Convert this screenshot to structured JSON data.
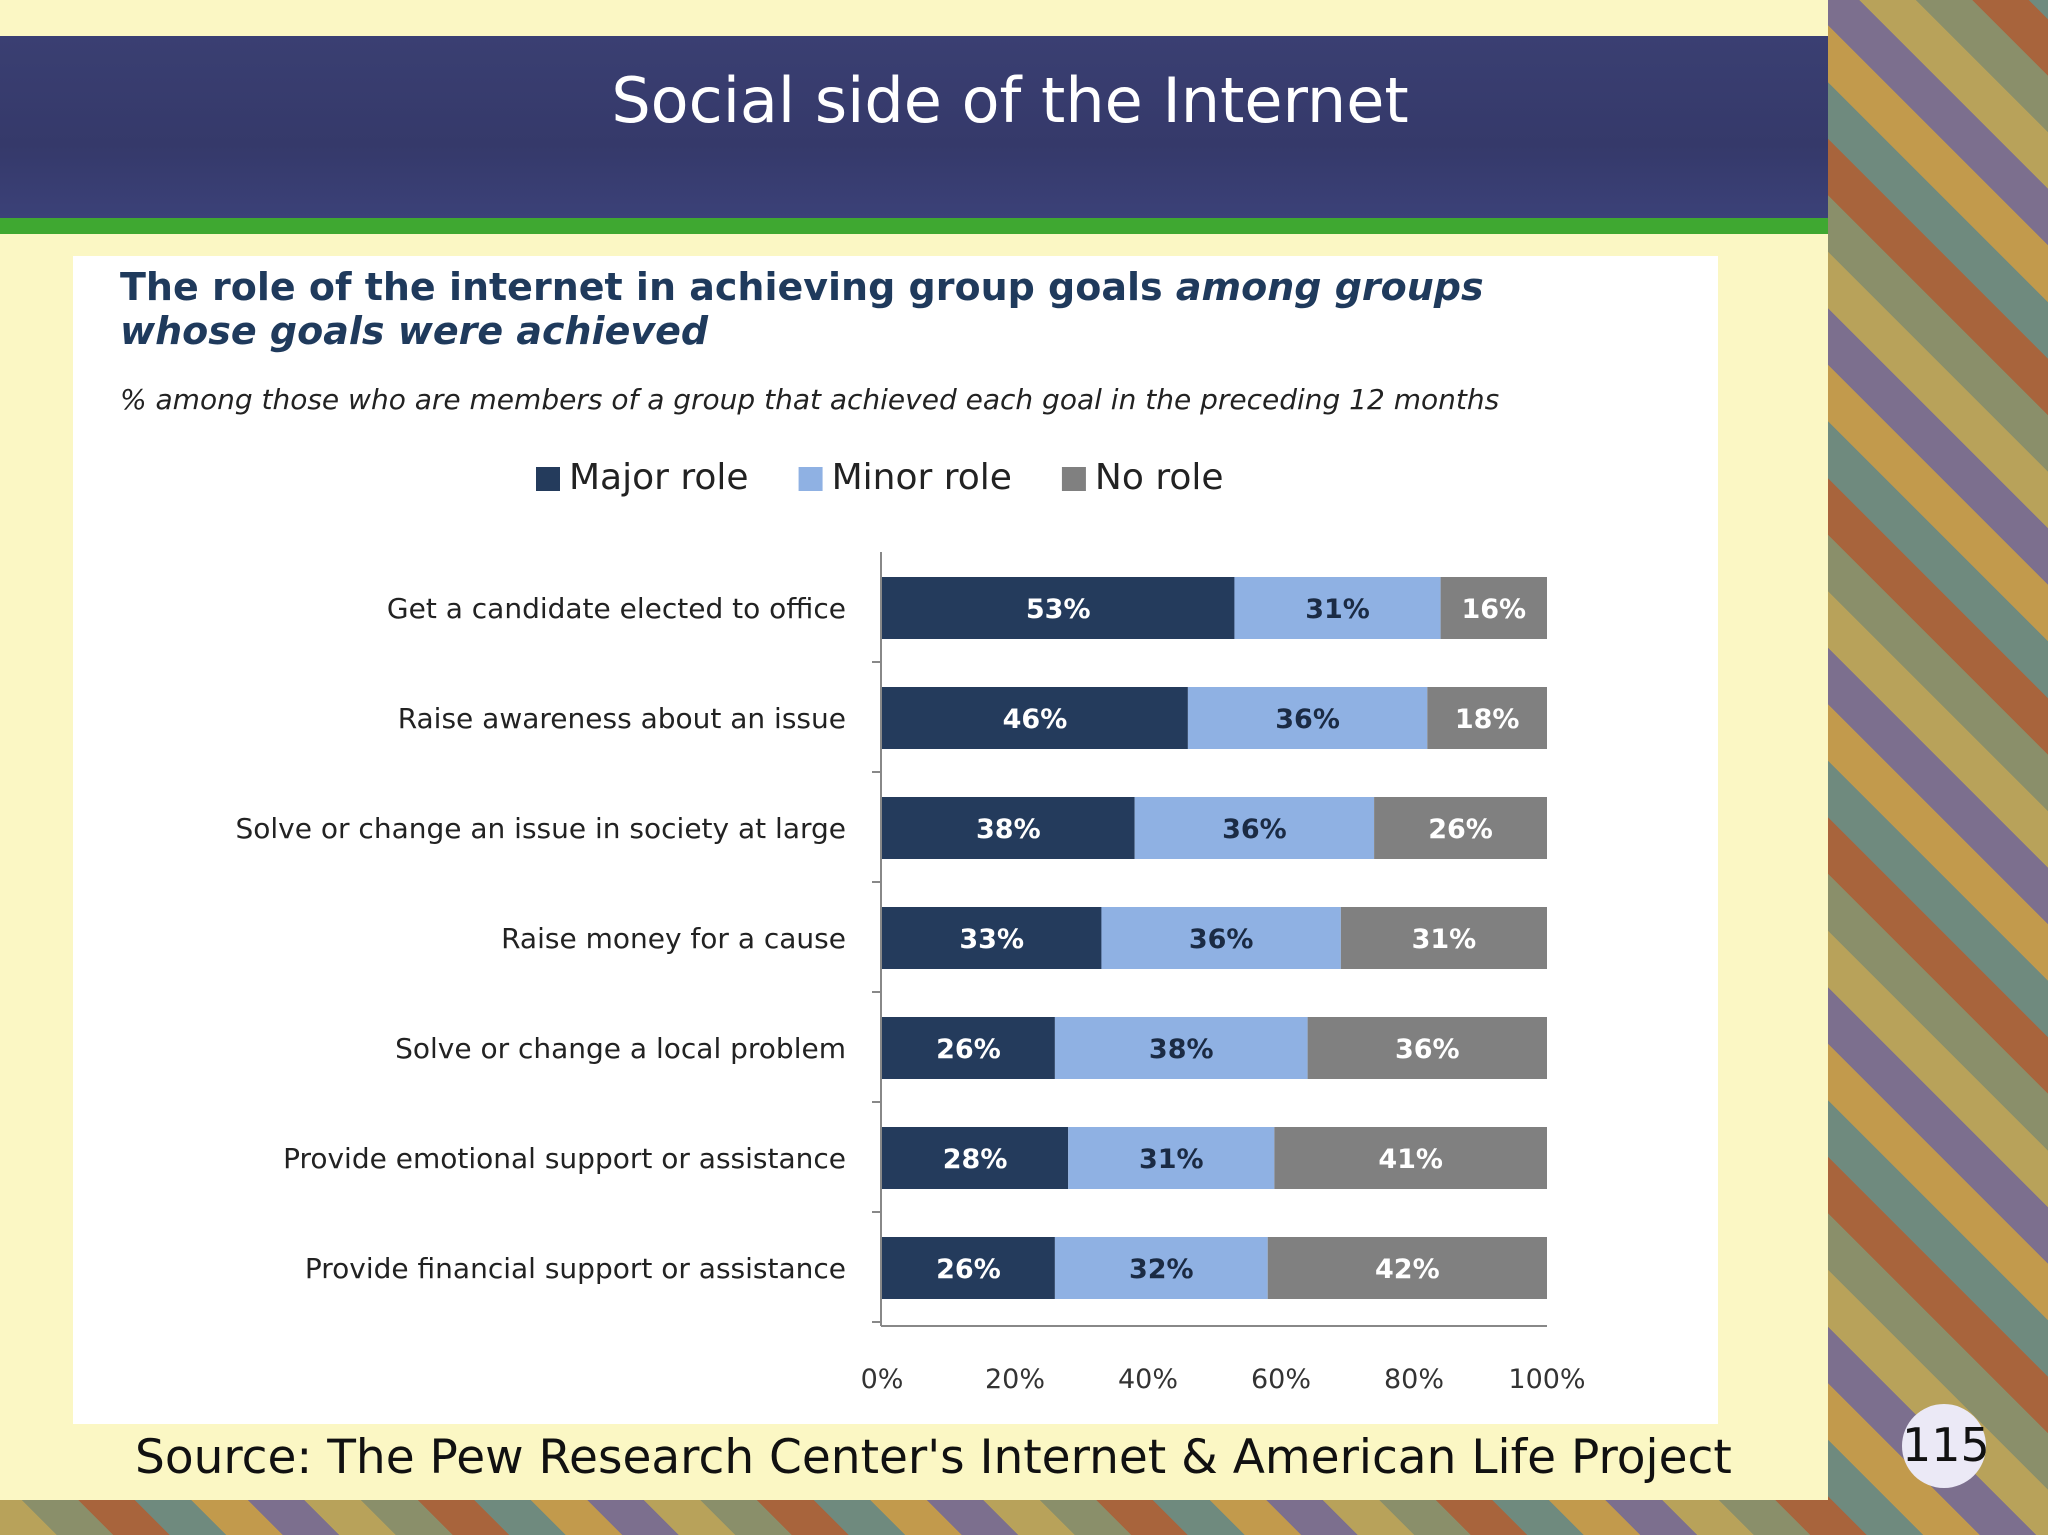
{
  "slide": {
    "title": "Social side of the Internet",
    "source": "Source:  The Pew Research Center's Internet & American Life Project",
    "page_number": "115"
  },
  "chart_data": {
    "type": "bar",
    "orientation": "horizontal",
    "stacked": true,
    "title_line1_normal": "The role of the internet in achieving group goals ",
    "title_line1_italic": "among groups",
    "title_line2_italic": "whose goals were achieved",
    "subtitle": "% among those who are members of a group that achieved each goal in the preceding 12 months",
    "categories": [
      "Get a candidate elected to office",
      "Raise awareness about an issue",
      "Solve or change an issue in society at large",
      "Raise money for a cause",
      "Solve or change a local problem",
      "Provide emotional support or assistance",
      "Provide financial support or assistance"
    ],
    "series": [
      {
        "name": "Major role",
        "color": "#243b5c",
        "values": [
          53,
          46,
          38,
          33,
          26,
          28,
          26
        ]
      },
      {
        "name": "Minor role",
        "color": "#8fb1e3",
        "values": [
          31,
          36,
          36,
          36,
          38,
          31,
          32
        ]
      },
      {
        "name": "No role",
        "color": "#808080",
        "values": [
          16,
          18,
          26,
          31,
          36,
          41,
          42
        ]
      }
    ],
    "xlim": [
      0,
      100
    ],
    "xticks": [
      "0%",
      "20%",
      "40%",
      "60%",
      "80%",
      "100%"
    ],
    "legend_position": "top",
    "grid": false
  }
}
